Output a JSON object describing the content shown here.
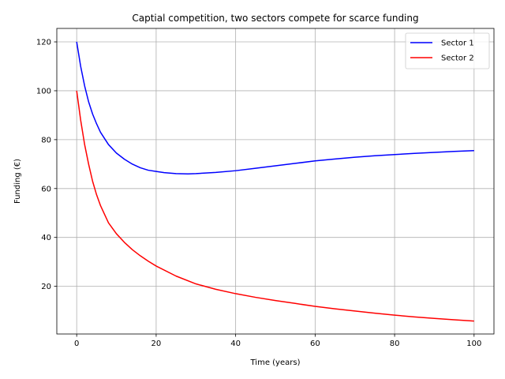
{
  "chart_data": {
    "type": "line",
    "title": "Captial competition, two sectors compete for scarce funding",
    "xlabel": "Time (years)",
    "ylabel": "Funding (€)",
    "xlim": [
      -5,
      105
    ],
    "ylim": [
      0.5,
      125.5
    ],
    "xticks": [
      0,
      20,
      40,
      60,
      80,
      100
    ],
    "yticks": [
      20,
      40,
      60,
      80,
      100,
      120
    ],
    "grid": true,
    "legend_position": "top-right",
    "series": [
      {
        "name": "Sector 1",
        "color": "#0000ff",
        "x": [
          0,
          1,
          2,
          3,
          4,
          5,
          6,
          8,
          10,
          12,
          14,
          16,
          18,
          20,
          22,
          25,
          28,
          30,
          35,
          40,
          45,
          50,
          55,
          60,
          65,
          70,
          75,
          80,
          85,
          90,
          95,
          100
        ],
        "y": [
          120,
          110,
          102,
          95.5,
          90.5,
          86.5,
          83,
          78,
          74.5,
          72,
          70,
          68.5,
          67.5,
          67,
          66.5,
          66.1,
          66,
          66.1,
          66.6,
          67.3,
          68.3,
          69.3,
          70.3,
          71.3,
          72.1,
          72.8,
          73.4,
          73.9,
          74.4,
          74.8,
          75.2,
          75.5
        ]
      },
      {
        "name": "Sector 2",
        "color": "#ff0000",
        "x": [
          0,
          1,
          2,
          3,
          4,
          5,
          6,
          8,
          10,
          12,
          14,
          16,
          18,
          20,
          25,
          30,
          35,
          40,
          45,
          50,
          55,
          60,
          65,
          70,
          75,
          80,
          85,
          90,
          95,
          100
        ],
        "y": [
          100,
          88,
          78,
          70,
          63,
          57.5,
          53,
          46,
          41.5,
          38,
          35,
          32.5,
          30.3,
          28.3,
          24.2,
          21,
          18.8,
          17,
          15.5,
          14.2,
          13,
          11.8,
          10.8,
          9.9,
          9,
          8.2,
          7.5,
          6.9,
          6.3,
          5.8
        ]
      }
    ]
  }
}
